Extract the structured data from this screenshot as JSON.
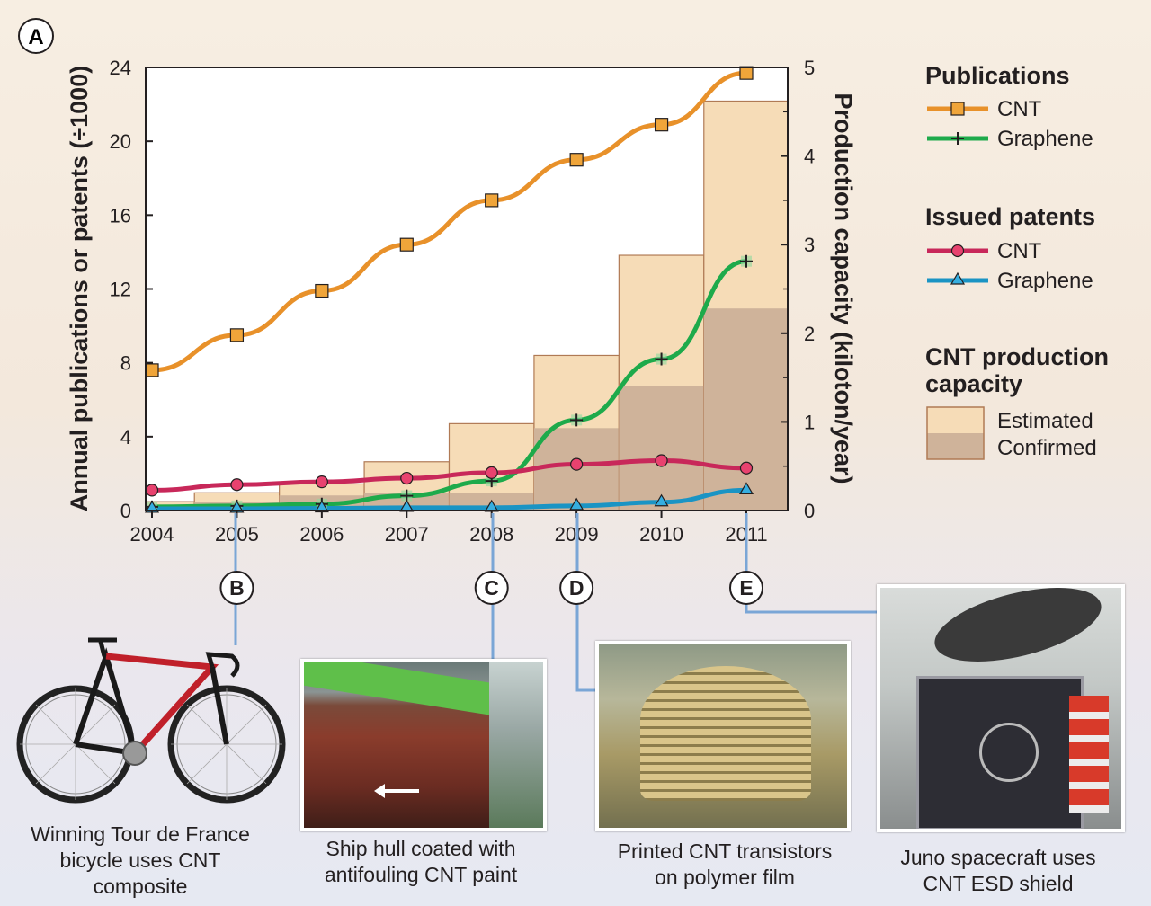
{
  "panel_label": "A",
  "chart_data": {
    "type": "line",
    "x": [
      2004,
      2005,
      2006,
      2007,
      2008,
      2009,
      2010,
      2011
    ],
    "xticks": [
      "2004",
      "2005",
      "2006",
      "2007",
      "2008",
      "2009",
      "2010",
      "2011"
    ],
    "ylabel": "Annual publications or patents (÷1000)",
    "y2label": "Production capacity (kiloton/year)",
    "ylim": [
      0,
      24
    ],
    "y2lim": [
      0,
      5
    ],
    "yticks": [
      "0",
      "4",
      "8",
      "12",
      "16",
      "20",
      "24"
    ],
    "y2ticks": [
      "0",
      "1",
      "2",
      "3",
      "4",
      "5"
    ],
    "series": [
      {
        "group": "Publications",
        "name": "CNT",
        "marker": "square",
        "color": "#e8912a",
        "values": [
          7.6,
          9.5,
          11.9,
          14.4,
          16.8,
          19.0,
          20.9,
          23.7
        ]
      },
      {
        "group": "Publications",
        "name": "Graphene",
        "marker": "plus",
        "color": "#1eaa4b",
        "values": [
          0.2,
          0.25,
          0.35,
          0.8,
          1.6,
          4.9,
          8.2,
          13.5
        ]
      },
      {
        "group": "Issued patents",
        "name": "CNT",
        "marker": "circle",
        "color": "#c8285a",
        "values": [
          1.1,
          1.4,
          1.55,
          1.75,
          2.05,
          2.5,
          2.7,
          2.3
        ]
      },
      {
        "group": "Issued patents",
        "name": "Graphene",
        "marker": "triangle",
        "color": "#1a94c4",
        "values": [
          0.1,
          0.1,
          0.12,
          0.15,
          0.15,
          0.25,
          0.45,
          1.1
        ]
      }
    ],
    "bars": {
      "axis": "right",
      "estimated": [
        0.1,
        0.2,
        0.3,
        0.55,
        0.98,
        1.75,
        2.88,
        4.62
      ],
      "confirmed": [
        0.05,
        0.1,
        0.17,
        0.2,
        0.2,
        0.93,
        1.4,
        2.28
      ],
      "estimated_color": "#f6dcb7",
      "confirmed_color": "#cfb39a",
      "outline_color": "#b07a55"
    },
    "legend": {
      "publications_title": "Publications",
      "patents_title": "Issued patents",
      "capacity_title_line1": "CNT production",
      "capacity_title_line2": "capacity",
      "estimated_label": "Estimated",
      "confirmed_label": "Confirmed",
      "placement": "right"
    }
  },
  "callouts": [
    {
      "label": "B",
      "year": 2005
    },
    {
      "label": "C",
      "year": 2008
    },
    {
      "label": "D",
      "year": 2009
    },
    {
      "label": "E",
      "year": 2011
    }
  ],
  "captions": {
    "bike_line1": "Winning Tour de France",
    "bike_line2": "bicycle uses CNT",
    "bike_line3": "composite",
    "ship_line1": "Ship hull coated with",
    "ship_line2": "antifouling CNT paint",
    "transistor_line1": "Printed CNT transistors",
    "transistor_line2": "on polymer film",
    "juno_line1": "Juno spacecraft uses",
    "juno_line2": "CNT ESD shield"
  }
}
